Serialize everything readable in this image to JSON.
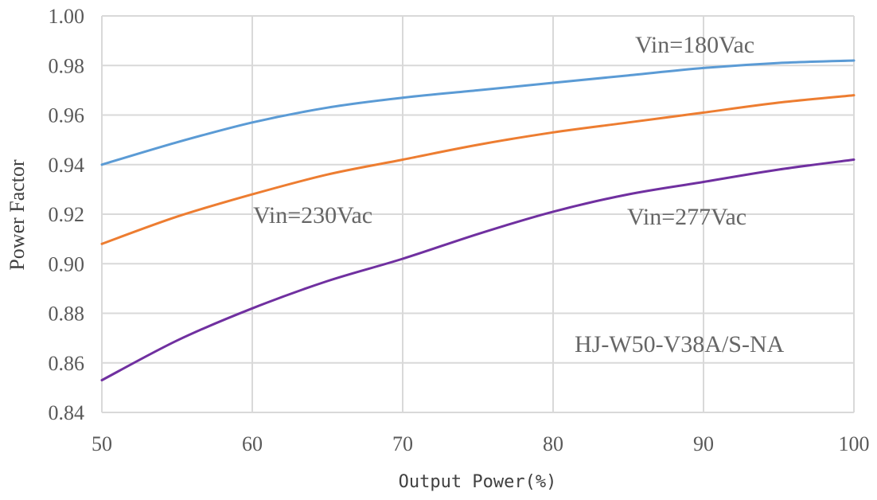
{
  "chart_data": {
    "type": "line",
    "xlabel": "Output Power(%)",
    "ylabel": "Power Factor",
    "xlim": [
      50,
      100
    ],
    "ylim": [
      0.84,
      1.0
    ],
    "xticks": [
      "50",
      "60",
      "70",
      "80",
      "90",
      "100"
    ],
    "yticks": [
      "0.84",
      "0.86",
      "0.88",
      "0.90",
      "0.92",
      "0.94",
      "0.96",
      "0.98",
      "1.00"
    ],
    "grid": true,
    "x": [
      50,
      55,
      60,
      65,
      70,
      75,
      80,
      85,
      90,
      95,
      100
    ],
    "series": [
      {
        "name": "Vin=180Vac",
        "color": "#5b9bd5",
        "values": [
          0.94,
          0.949,
          0.957,
          0.963,
          0.967,
          0.97,
          0.973,
          0.976,
          0.979,
          0.981,
          0.982
        ]
      },
      {
        "name": "Vin=230Vac",
        "color": "#ed7d31",
        "values": [
          0.908,
          0.919,
          0.928,
          0.936,
          0.942,
          0.948,
          0.953,
          0.957,
          0.961,
          0.965,
          0.968
        ]
      },
      {
        "name": "Vin=277Vac",
        "color": "#7030a0",
        "values": [
          0.853,
          0.869,
          0.882,
          0.893,
          0.902,
          0.912,
          0.921,
          0.928,
          0.933,
          0.938,
          0.942
        ]
      }
    ],
    "annotations": [
      "Vin=180Vac",
      "Vin=230Vac",
      "Vin=277Vac",
      "HJ-W50-V38A/S-NA"
    ]
  }
}
